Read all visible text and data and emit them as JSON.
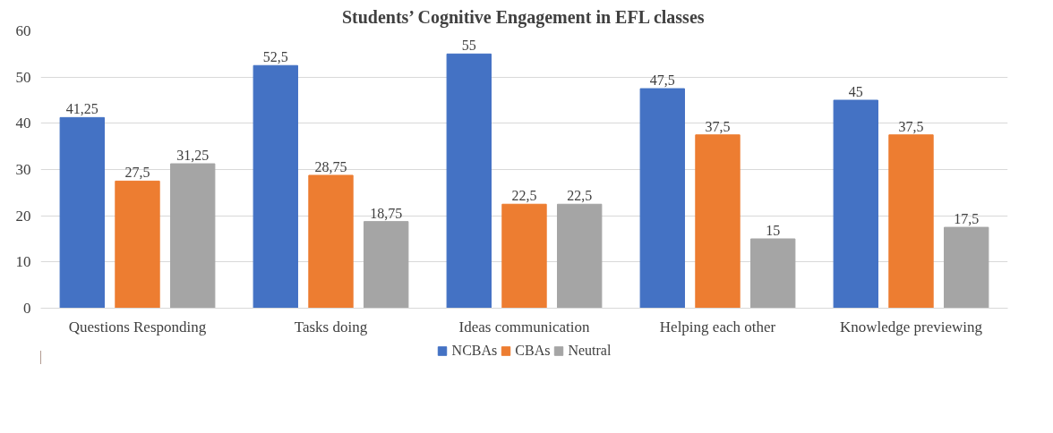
{
  "chart_data": {
    "type": "bar",
    "title": "Students’ Cognitive Engagement in EFL classes",
    "categories": [
      "Questions Responding",
      "Tasks doing",
      "Ideas communication",
      "Helping each other",
      "Knowledge previewing"
    ],
    "series": [
      {
        "name": "NCBAs",
        "color": "#4472c4",
        "values": [
          41.25,
          52.5,
          55,
          47.5,
          45
        ],
        "value_labels": [
          "41,25",
          "52,5",
          "55",
          "47,5",
          "45"
        ]
      },
      {
        "name": "CBAs",
        "color": "#ed7d31",
        "values": [
          27.5,
          28.75,
          22.5,
          37.5,
          37.5
        ],
        "value_labels": [
          "27,5",
          "28,75",
          "22,5",
          "37,5",
          "37,5"
        ]
      },
      {
        "name": "Neutral",
        "color": "#a5a5a5",
        "values": [
          31.25,
          18.75,
          22.5,
          15,
          17.5
        ],
        "value_labels": [
          "31,25",
          "18,75",
          "22,5",
          "15",
          "17,5"
        ]
      }
    ],
    "ylim": [
      0,
      60
    ],
    "yticks": [
      0,
      10,
      20,
      30,
      40,
      50,
      60
    ],
    "grid": "y",
    "legend": "bottom"
  }
}
